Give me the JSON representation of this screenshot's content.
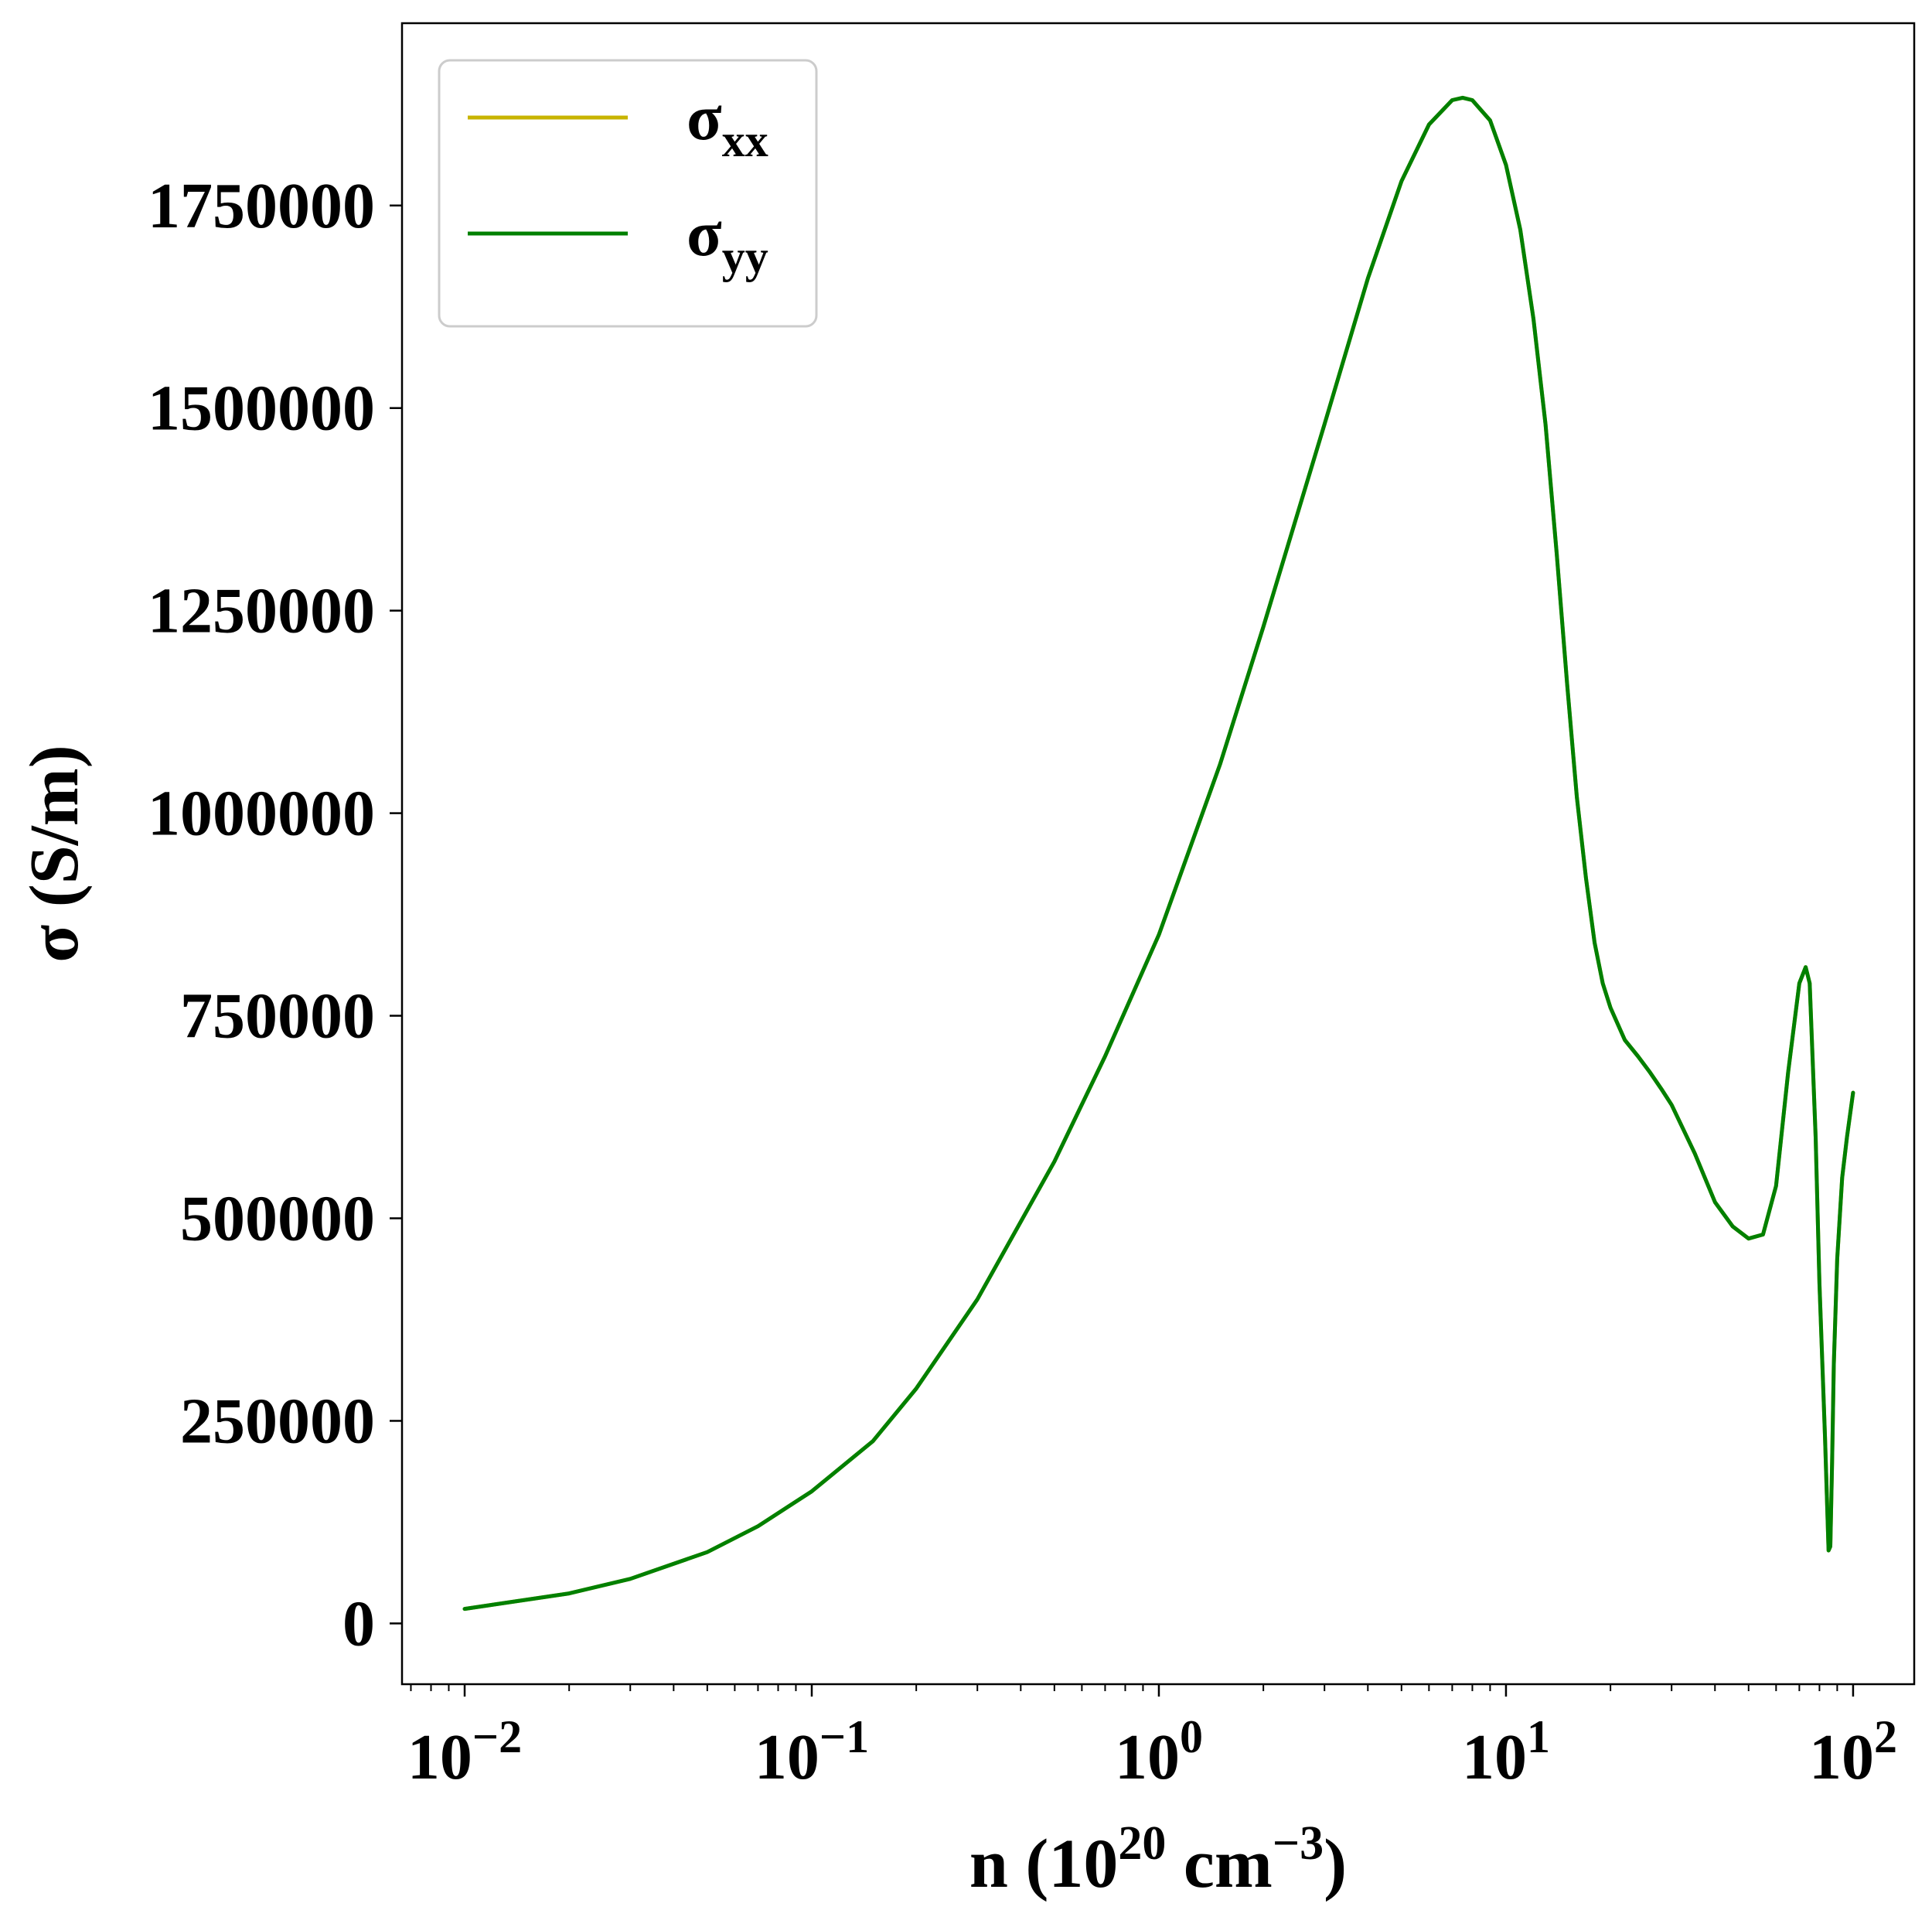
{
  "chart_data": {
    "type": "line",
    "xlabel": "n (10^20 cm^-3)",
    "ylabel": "σ (S/m)",
    "x_scale": "log",
    "xlim": [
      0.0066,
      150
    ],
    "ylim": [
      -75000,
      1975000
    ],
    "x_ticks": [
      {
        "value": 0.01,
        "base": "10",
        "exp": "−2"
      },
      {
        "value": 0.1,
        "base": "10",
        "exp": "−1"
      },
      {
        "value": 1,
        "base": "10",
        "exp": "0"
      },
      {
        "value": 10,
        "base": "10",
        "exp": "1"
      },
      {
        "value": 100,
        "base": "10",
        "exp": "2"
      }
    ],
    "y_ticks": [
      0,
      250000,
      500000,
      750000,
      1000000,
      1250000,
      1500000,
      1750000
    ],
    "y_tick_labels": [
      "0",
      "250000",
      "500000",
      "750000",
      "1000000",
      "1250000",
      "1500000",
      "1750000"
    ],
    "grid": false,
    "legend_position": "top-left",
    "series": [
      {
        "name": "σxx",
        "name_base": "σ",
        "name_sub": "xx",
        "color": "#c8b400",
        "x": [
          0.01,
          0.02,
          0.03,
          0.05,
          0.07,
          0.1,
          0.15,
          0.2,
          0.3,
          0.5,
          0.7,
          1,
          1.5,
          2,
          3,
          4,
          5,
          6,
          7,
          7.5,
          8,
          9,
          10,
          11,
          12,
          13,
          14,
          15,
          16,
          17,
          18,
          19,
          20,
          22,
          24,
          26,
          28,
          30,
          35,
          40,
          45,
          50,
          55,
          60,
          65,
          70,
          73,
          75,
          78,
          80,
          83,
          85,
          86,
          87,
          88,
          90,
          93,
          96,
          100
        ],
        "y": [
          18000,
          37000,
          55000,
          88000,
          120000,
          163000,
          225000,
          290000,
          400000,
          570000,
          700000,
          850000,
          1060000,
          1230000,
          1480000,
          1660000,
          1780000,
          1850000,
          1880000,
          1883000,
          1880000,
          1855000,
          1800000,
          1720000,
          1610000,
          1480000,
          1320000,
          1160000,
          1020000,
          920000,
          840000,
          790000,
          760000,
          720000,
          700000,
          680000,
          660000,
          640000,
          580000,
          520000,
          490000,
          475000,
          480000,
          540000,
          680000,
          790000,
          810000,
          790000,
          600000,
          420000,
          230000,
          90000,
          95000,
          200000,
          320000,
          450000,
          550000,
          600000,
          655000
        ]
      },
      {
        "name": "σyy",
        "name_base": "σ",
        "name_sub": "yy",
        "color": "#008000",
        "x": [
          0.01,
          0.02,
          0.03,
          0.05,
          0.07,
          0.1,
          0.15,
          0.2,
          0.3,
          0.5,
          0.7,
          1,
          1.5,
          2,
          3,
          4,
          5,
          6,
          7,
          7.5,
          8,
          9,
          10,
          11,
          12,
          13,
          14,
          15,
          16,
          17,
          18,
          19,
          20,
          22,
          24,
          26,
          28,
          30,
          35,
          40,
          45,
          50,
          55,
          60,
          65,
          70,
          73,
          75,
          78,
          80,
          83,
          85,
          86,
          87,
          88,
          90,
          93,
          96,
          100
        ],
        "y": [
          18000,
          37000,
          55000,
          88000,
          120000,
          163000,
          225000,
          290000,
          400000,
          570000,
          700000,
          850000,
          1060000,
          1230000,
          1480000,
          1660000,
          1780000,
          1850000,
          1880000,
          1883000,
          1880000,
          1855000,
          1800000,
          1720000,
          1610000,
          1480000,
          1320000,
          1160000,
          1020000,
          920000,
          840000,
          790000,
          760000,
          720000,
          700000,
          680000,
          660000,
          640000,
          580000,
          520000,
          490000,
          475000,
          480000,
          540000,
          680000,
          790000,
          810000,
          790000,
          600000,
          420000,
          230000,
          90000,
          95000,
          200000,
          320000,
          450000,
          550000,
          600000,
          655000
        ]
      }
    ]
  }
}
